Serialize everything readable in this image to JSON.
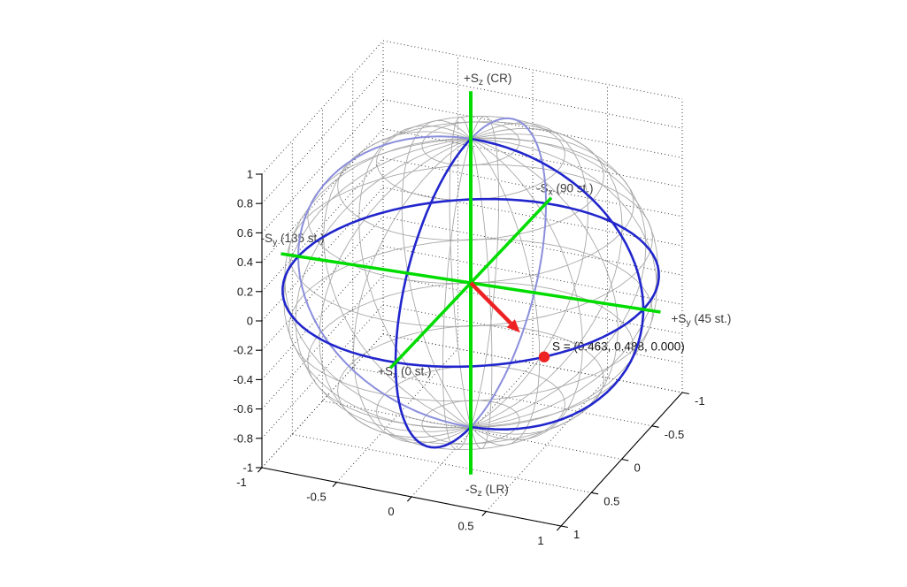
{
  "figure": {
    "background": "#ffffff",
    "colors": {
      "axis_green": "#00dc00",
      "circle_blue": "#2126cc",
      "circle_blue_light": "#8a8edb",
      "wire_gray": "#999999",
      "vector_red": "#ee2222",
      "grid_black": "#000000",
      "label_text": "#3a3a3a",
      "tick_text": "#1a1a1a"
    },
    "axis_labels": {
      "sz_pos": {
        "pre": "+S",
        "sub": "z",
        "post": " (CR)"
      },
      "sz_neg": {
        "pre": "-S",
        "sub": "z",
        "post": " (LR)"
      },
      "sy_pos": {
        "pre": "+S",
        "sub": "y",
        "post": " (45 st.)"
      },
      "sy_neg": {
        "pre": "-S",
        "sub": "y",
        "post": " (135 st.)"
      },
      "sx_pos": {
        "pre": "+S",
        "sub": "x",
        "post": " (0 st.)"
      },
      "sx_neg": {
        "pre": "-S",
        "sub": "x",
        "post": " (90 st.)"
      }
    },
    "annotation": "S = (0.463, 0.488, 0.000)",
    "ticks": {
      "x": [
        "-1",
        "-0.5",
        "0",
        "0.5",
        "1"
      ],
      "y": [
        "1",
        "0.5",
        "0",
        "-0.5",
        "-1"
      ],
      "z": [
        "1",
        "0.8",
        "0.6",
        "0.4",
        "0.2",
        "0",
        "-0.2",
        "-0.4",
        "-0.6",
        "-0.8",
        "-1"
      ]
    }
  },
  "chart_data": {
    "type": "scatter",
    "subtype": "poincare-sphere-3d",
    "title": "",
    "axes": {
      "x": {
        "range": [
          -1,
          1
        ],
        "tick_labels": [
          "-1",
          "-0.5",
          "0",
          "0.5",
          "1"
        ]
      },
      "y": {
        "range": [
          -1,
          1
        ],
        "tick_labels": [
          "1",
          "0.5",
          "0",
          "-0.5",
          "-1"
        ],
        "direction": "front-to-back"
      },
      "z": {
        "range": [
          -1,
          1
        ],
        "tick_labels": [
          "1",
          "0.8",
          "0.6",
          "0.4",
          "0.2",
          "0",
          "-0.2",
          "-0.4",
          "-0.6",
          "-0.8",
          "-1"
        ]
      }
    },
    "grid": "dotted, on back walls and floor",
    "sphere": {
      "radius": 1,
      "wireframe_step_deg": 15,
      "great_circles": [
        "equator (Sz=0)",
        "meridian Sx-Sz plane",
        "meridian Sy-Sz plane"
      ]
    },
    "stokes_axes": [
      {
        "id": "sz_pos",
        "label": "+Sz (CR)",
        "direction": [
          0,
          0,
          1
        ]
      },
      {
        "id": "sz_neg",
        "label": "-Sz (LR)",
        "direction": [
          0,
          0,
          -1
        ]
      },
      {
        "id": "sy_pos",
        "label": "+Sy (45 st.)",
        "direction": [
          0,
          1,
          0
        ]
      },
      {
        "id": "sy_neg",
        "label": "-Sy (135 st.)",
        "direction": [
          0,
          -1,
          0
        ]
      },
      {
        "id": "sx_pos",
        "label": "+Sx (0 st.)",
        "direction": [
          1,
          0,
          0
        ]
      },
      {
        "id": "sx_neg",
        "label": "-Sx (90 st.)",
        "direction": [
          -1,
          0,
          0
        ]
      }
    ],
    "vector": {
      "name": "S",
      "components": [
        0.463,
        0.488,
        0.0
      ],
      "annotation": "S = (0.463, 0.488, 0.000)",
      "drawn_as": "red arrow from origin"
    },
    "marker": {
      "shape": "dot",
      "color": "#ee2222",
      "position_rule": "S normalized onto sphere surface"
    }
  }
}
